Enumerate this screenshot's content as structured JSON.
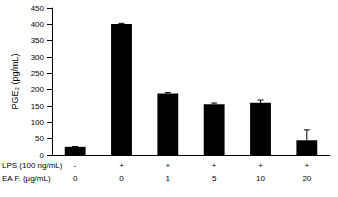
{
  "chart_data": {
    "type": "bar",
    "y_label": "PGE₂ (pg/mL)",
    "row_labels": [
      "LPS (100 ng/mL)",
      "EA F. (μg/mL)"
    ],
    "lps": [
      "-",
      "+",
      "+",
      "+",
      "+",
      "+"
    ],
    "categories": [
      "0",
      "0",
      "1",
      "5",
      "10",
      "20"
    ],
    "values": [
      25,
      401,
      188,
      155,
      160,
      45
    ],
    "errors": [
      1,
      2,
      3,
      4,
      8,
      32
    ],
    "color": "#000000",
    "ylim": [
      0,
      450
    ],
    "yticks": [
      0,
      50,
      100,
      150,
      200,
      250,
      300,
      350,
      400,
      450
    ],
    "grid": false
  }
}
